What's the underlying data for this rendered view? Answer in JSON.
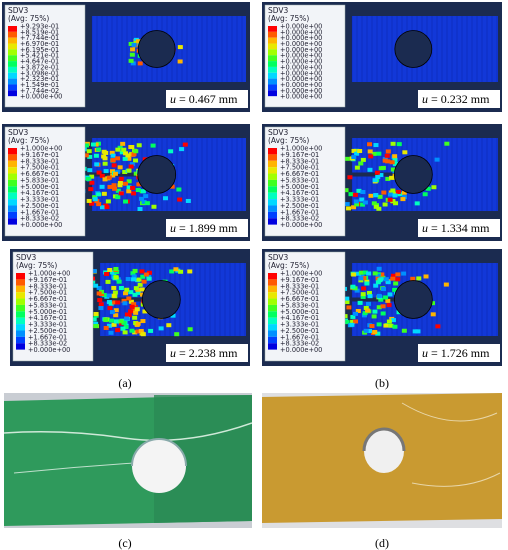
{
  "panels": [
    {
      "legend_title": "SDV3",
      "legend_subtitle": "(Avg: 75%)",
      "legend_labels": [
        "+9.293e-01",
        "+8.519e-01",
        "+7.744e-01",
        "+6.970e-01",
        "+6.195e-01",
        "+5.421e-01",
        "+4.647e-01",
        "+3.872e-01",
        "+3.098e-01",
        "+2.323e-01",
        "+1.549e-01",
        "+7.744e-02",
        "+0.000e+00"
      ],
      "displacement": {
        "symbol": "u",
        "text": "= 0.467 mm"
      }
    },
    {
      "legend_title": "SDV3",
      "legend_subtitle": "(Avg: 75%)",
      "legend_labels": [
        "+0.000e+00",
        "+0.000e+00",
        "+0.000e+00",
        "+0.000e+00",
        "+0.000e+00",
        "+0.000e+00",
        "+0.000e+00",
        "+0.000e+00",
        "+0.000e+00",
        "+0.000e+00",
        "+0.000e+00",
        "+0.000e+00",
        "+0.000e+00"
      ],
      "displacement": {
        "symbol": "u",
        "text": "= 0.232 mm"
      }
    },
    {
      "legend_title": "SDV3",
      "legend_subtitle": "(Avg: 75%)",
      "legend_labels": [
        "+1.000e+00",
        "+9.167e-01",
        "+8.333e-01",
        "+7.500e-01",
        "+6.667e-01",
        "+5.833e-01",
        "+5.000e-01",
        "+4.167e-01",
        "+3.333e-01",
        "+2.500e-01",
        "+1.667e-01",
        "+8.333e-02",
        "+0.000e+00"
      ],
      "displacement": {
        "symbol": "u",
        "text": "= 1.899 mm"
      }
    },
    {
      "legend_title": "SDV3",
      "legend_subtitle": "(Avg: 75%)",
      "legend_labels": [
        "+1.000e+00",
        "+9.167e-01",
        "+8.333e-01",
        "+7.500e-01",
        "+6.667e-01",
        "+5.833e-01",
        "+5.000e-01",
        "+4.167e-01",
        "+3.333e-01",
        "+2.500e-01",
        "+1.667e-01",
        "+8.333e-02",
        "+0.000e+00"
      ],
      "displacement": {
        "symbol": "u",
        "text": "= 1.334 mm"
      }
    },
    {
      "legend_title": "SDV3",
      "legend_subtitle": "(Avg: 75%)",
      "legend_labels": [
        "+1.000e+00",
        "+9.167e-01",
        "+8.333e-01",
        "+7.500e-01",
        "+6.667e-01",
        "+5.833e-01",
        "+5.000e-01",
        "+4.167e-01",
        "+3.333e-01",
        "+2.500e-01",
        "+1.667e-01",
        "+8.333e-02",
        "+0.000e+00"
      ],
      "displacement": {
        "symbol": "u",
        "text": "= 2.238 mm"
      }
    },
    {
      "legend_title": "SDV3",
      "legend_subtitle": "(Avg: 75%)",
      "legend_labels": [
        "+1.000e+00",
        "+9.167e-01",
        "+8.333e-01",
        "+7.500e-01",
        "+6.667e-01",
        "+5.833e-01",
        "+5.000e-01",
        "+4.167e-01",
        "+3.333e-01",
        "+2.500e-01",
        "+1.667e-01",
        "+8.333e-02",
        "+0.000e+00"
      ],
      "displacement": {
        "symbol": "u",
        "text": "= 1.726 mm"
      }
    }
  ],
  "captions": [
    "(a)",
    "(b)",
    "(c)",
    "(d)"
  ]
}
